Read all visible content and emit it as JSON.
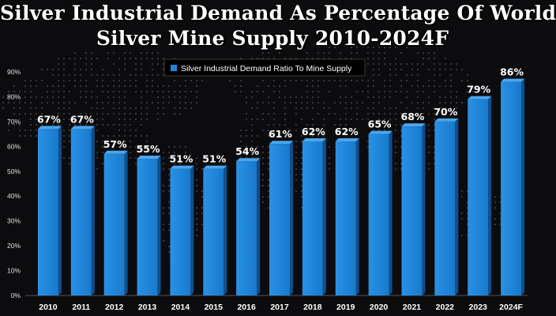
{
  "title": {
    "line1": "Silver Industrial Demand As Percentage Of World",
    "line2": "Silver Mine Supply 2010-2024F"
  },
  "colors": {
    "bar_front": "#1f86dc",
    "bar_side": "#0f4f8e",
    "bar_top": "#4aa6ee",
    "text": "#ffffff",
    "axis_text": "#e0e0e0"
  },
  "chart_data": {
    "type": "bar",
    "title": "Silver Industrial Demand As Percentage Of World Silver Mine Supply 2010-2024F",
    "legend": {
      "label": "Silver Industrial Demand Ratio To Mine Supply",
      "position": "top-left"
    },
    "categories": [
      "2010",
      "2011",
      "2012",
      "2013",
      "2014",
      "2015",
      "2016",
      "2017",
      "2018",
      "2019",
      "2020",
      "2021",
      "2022",
      "2023",
      "2024F"
    ],
    "values": [
      67,
      67,
      57,
      55,
      51,
      51,
      54,
      61,
      62,
      62,
      65,
      68,
      70,
      79,
      86
    ],
    "labels": [
      "67%",
      "67%",
      "57%",
      "55%",
      "51%",
      "51%",
      "54%",
      "61%",
      "62%",
      "62%",
      "65%",
      "68%",
      "70%",
      "79%",
      "86%"
    ],
    "y_ticks": [
      "0%",
      "10%",
      "20%",
      "30%",
      "40%",
      "50%",
      "60%",
      "70%",
      "80%",
      "90%"
    ],
    "ylim": [
      0,
      90
    ],
    "xlabel": "",
    "ylabel": "",
    "grid": false
  }
}
